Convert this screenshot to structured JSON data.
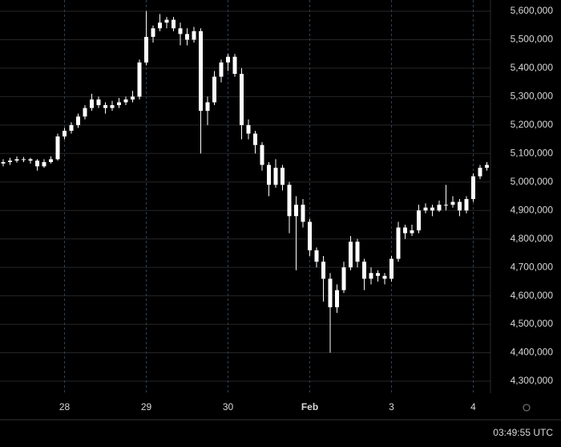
{
  "chart_data": {
    "type": "candlestick",
    "categories": [
      null,
      null,
      null,
      null,
      null,
      null,
      null,
      null,
      null,
      "28",
      null,
      null,
      null,
      null,
      null,
      null,
      null,
      null,
      null,
      null,
      null,
      "29",
      null,
      null,
      null,
      null,
      null,
      null,
      null,
      null,
      null,
      null,
      null,
      "30",
      null,
      null,
      null,
      null,
      null,
      null,
      null,
      null,
      null,
      null,
      null,
      "Feb",
      null,
      null,
      null,
      null,
      null,
      null,
      null,
      null,
      null,
      null,
      null,
      "3",
      null,
      null,
      null,
      null,
      null,
      null,
      null,
      null,
      null,
      null,
      null,
      "4",
      null,
      null
    ],
    "open": [
      5065000,
      5070000,
      5075000,
      5080000,
      5080000,
      5075000,
      5055000,
      5070000,
      5080000,
      5160000,
      5180000,
      5200000,
      5230000,
      5260000,
      5290000,
      5270000,
      5260000,
      5270000,
      5280000,
      5290000,
      5300000,
      5420000,
      5510000,
      5540000,
      5560000,
      5570000,
      5540000,
      5520000,
      5500000,
      5530000,
      5250000,
      5280000,
      5370000,
      5420000,
      5440000,
      5380000,
      5200000,
      5170000,
      5130000,
      5060000,
      4990000,
      5050000,
      4990000,
      4880000,
      4920000,
      4860000,
      4760000,
      4720000,
      4660000,
      4560000,
      4620000,
      4700000,
      4790000,
      4720000,
      4660000,
      4680000,
      4670000,
      4660000,
      4730000,
      4840000,
      4820000,
      4830000,
      4900000,
      4910000,
      4900000,
      4920000,
      4920000,
      4930000,
      4900000,
      4940000,
      5020000,
      5050000
    ],
    "high": [
      5080000,
      5085000,
      5090000,
      5088000,
      5085000,
      5080000,
      5080000,
      5090000,
      5170000,
      5190000,
      5210000,
      5240000,
      5270000,
      5310000,
      5300000,
      5280000,
      5285000,
      5295000,
      5300000,
      5320000,
      5430000,
      5600000,
      5550000,
      5590000,
      5580000,
      5580000,
      5560000,
      5540000,
      5545000,
      5540000,
      5300000,
      5390000,
      5430000,
      5450000,
      5450000,
      5400000,
      5220000,
      5180000,
      5140000,
      5070000,
      5080000,
      5060000,
      5000000,
      4950000,
      4940000,
      4870000,
      4770000,
      4740000,
      4680000,
      4640000,
      4720000,
      4810000,
      4800000,
      4730000,
      4700000,
      4690000,
      4680000,
      4740000,
      4860000,
      4850000,
      4850000,
      4920000,
      4925000,
      4920000,
      4935000,
      4990000,
      4950000,
      4940000,
      4950000,
      5030000,
      5060000,
      5070000
    ],
    "low": [
      5055000,
      5060000,
      5068000,
      5070000,
      5065000,
      5040000,
      5050000,
      5065000,
      5075000,
      5150000,
      5170000,
      5190000,
      5220000,
      5250000,
      5260000,
      5240000,
      5250000,
      5260000,
      5270000,
      5280000,
      5290000,
      5410000,
      5490000,
      5530000,
      5540000,
      5530000,
      5480000,
      5480000,
      5490000,
      5100000,
      5200000,
      5270000,
      5350000,
      5390000,
      5370000,
      5150000,
      5150000,
      5100000,
      5040000,
      4950000,
      4980000,
      4970000,
      4820000,
      4690000,
      4840000,
      4740000,
      4700000,
      4580000,
      4400000,
      4540000,
      4610000,
      4690000,
      4700000,
      4620000,
      4640000,
      4650000,
      4640000,
      4650000,
      4720000,
      4800000,
      4810000,
      4820000,
      4890000,
      4880000,
      4895000,
      4900000,
      4910000,
      4880000,
      4890000,
      4930000,
      5010000,
      5040000
    ],
    "close": [
      5070000,
      5075000,
      5080000,
      5080000,
      5075000,
      5055000,
      5070000,
      5080000,
      5160000,
      5180000,
      5200000,
      5230000,
      5260000,
      5290000,
      5270000,
      5260000,
      5270000,
      5280000,
      5290000,
      5300000,
      5420000,
      5510000,
      5540000,
      5560000,
      5570000,
      5540000,
      5520000,
      5500000,
      5530000,
      5250000,
      5280000,
      5370000,
      5420000,
      5440000,
      5380000,
      5200000,
      5170000,
      5130000,
      5060000,
      4990000,
      5050000,
      4990000,
      4880000,
      4920000,
      4860000,
      4760000,
      4720000,
      4660000,
      4560000,
      4620000,
      4700000,
      4790000,
      4720000,
      4660000,
      4680000,
      4670000,
      4660000,
      4730000,
      4840000,
      4820000,
      4830000,
      4900000,
      4910000,
      4900000,
      4920000,
      4920000,
      4930000,
      4900000,
      4940000,
      5020000,
      5050000,
      5060000
    ],
    "color": "#ffffff",
    "ylim": [
      4257700,
      5639500
    ],
    "yticks": [
      {
        "value": 4300000,
        "label": "4,300,000"
      },
      {
        "value": 4400000,
        "label": "4,400,000"
      },
      {
        "value": 4500000,
        "label": "4,500,000"
      },
      {
        "value": 4600000,
        "label": "4,600,000"
      },
      {
        "value": 4700000,
        "label": "4,700,000"
      },
      {
        "value": 4800000,
        "label": "4,800,000"
      },
      {
        "value": 4900000,
        "label": "4,900,000"
      },
      {
        "value": 5000000,
        "label": "5,000,000"
      },
      {
        "value": 5100000,
        "label": "5,100,000"
      },
      {
        "value": 5200000,
        "label": "5,200,000"
      },
      {
        "value": 5300000,
        "label": "5,300,000"
      },
      {
        "value": 5400000,
        "label": "5,400,000"
      },
      {
        "value": 5500000,
        "label": "5,500,000"
      },
      {
        "value": 5600000,
        "label": "5,600,000"
      }
    ],
    "grid": true,
    "clock": "03:49:55 UTC"
  }
}
